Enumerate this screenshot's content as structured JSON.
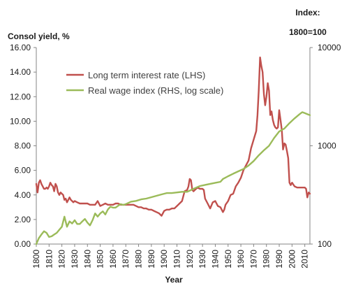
{
  "chart_data": {
    "type": "line",
    "ylabel_left": "Consol yield, %",
    "ylabel_right_line1": "Index:",
    "ylabel_right_line2": "1800=100",
    "xlabel": "Year",
    "xlim": [
      1800,
      2014
    ],
    "ylim_left": [
      0,
      16
    ],
    "ylim_right": [
      100,
      10000
    ],
    "right_axis_scale": "log",
    "grid": false,
    "legend_position": "upper-left inside plot",
    "x_ticks": [
      1800,
      1810,
      1820,
      1830,
      1840,
      1850,
      1860,
      1870,
      1880,
      1890,
      1900,
      1910,
      1920,
      1930,
      1940,
      1950,
      1960,
      1970,
      1980,
      1990,
      2000,
      2010
    ],
    "y_ticks_left": [
      "0.00",
      "2.00",
      "4.00",
      "6.00",
      "8.00",
      "10.00",
      "12.00",
      "14.00",
      "16.00"
    ],
    "y_ticks_right": [
      "100",
      "1000",
      "10000"
    ],
    "series": [
      {
        "name": "Long term interest rate (LHS)",
        "axis": "left",
        "color": "#c0504d",
        "x": [
          1800,
          1801,
          1802,
          1803,
          1804,
          1805,
          1806,
          1807,
          1808,
          1809,
          1810,
          1811,
          1812,
          1813,
          1814,
          1815,
          1816,
          1817,
          1818,
          1819,
          1820,
          1821,
          1822,
          1823,
          1824,
          1825,
          1826,
          1827,
          1828,
          1829,
          1830,
          1832,
          1834,
          1836,
          1838,
          1840,
          1842,
          1844,
          1846,
          1848,
          1850,
          1852,
          1854,
          1856,
          1858,
          1860,
          1862,
          1864,
          1866,
          1868,
          1870,
          1872,
          1874,
          1876,
          1878,
          1880,
          1882,
          1884,
          1886,
          1888,
          1890,
          1892,
          1894,
          1896,
          1898,
          1900,
          1902,
          1904,
          1906,
          1908,
          1910,
          1912,
          1914,
          1916,
          1918,
          1919,
          1920,
          1921,
          1922,
          1923,
          1924,
          1926,
          1928,
          1930,
          1931,
          1932,
          1934,
          1936,
          1938,
          1940,
          1942,
          1944,
          1946,
          1947,
          1948,
          1950,
          1952,
          1954,
          1956,
          1958,
          1960,
          1962,
          1964,
          1966,
          1968,
          1970,
          1972,
          1973,
          1974,
          1975,
          1976,
          1977,
          1978,
          1979,
          1980,
          1981,
          1982,
          1983,
          1984,
          1985,
          1986,
          1987,
          1988,
          1989,
          1990,
          1991,
          1992,
          1993,
          1994,
          1995,
          1996,
          1997,
          1998,
          1999,
          2000,
          2002,
          2004,
          2006,
          2008,
          2010,
          2011,
          2012,
          2013,
          2014
        ],
        "y": [
          4.9,
          4.2,
          5.0,
          5.2,
          4.9,
          4.7,
          4.5,
          4.5,
          4.6,
          4.5,
          4.7,
          5.0,
          4.8,
          4.7,
          4.3,
          4.9,
          4.7,
          4.2,
          4.0,
          4.2,
          4.1,
          4.0,
          3.6,
          3.7,
          3.4,
          3.6,
          3.8,
          3.6,
          3.5,
          3.4,
          3.5,
          3.4,
          3.3,
          3.3,
          3.3,
          3.3,
          3.2,
          3.2,
          3.2,
          3.5,
          3.1,
          3.2,
          3.3,
          3.2,
          3.2,
          3.2,
          3.3,
          3.3,
          3.2,
          3.2,
          3.2,
          3.2,
          3.2,
          3.2,
          3.1,
          3.0,
          3.0,
          2.9,
          2.9,
          2.8,
          2.8,
          2.7,
          2.6,
          2.5,
          2.3,
          2.7,
          2.8,
          2.8,
          2.9,
          2.9,
          3.1,
          3.3,
          3.5,
          4.3,
          4.4,
          4.7,
          5.3,
          5.2,
          4.4,
          4.3,
          4.4,
          4.6,
          4.5,
          4.5,
          4.4,
          3.7,
          3.3,
          2.9,
          3.4,
          3.5,
          3.1,
          3.0,
          2.6,
          2.8,
          3.2,
          3.5,
          4.0,
          4.1,
          4.7,
          5.0,
          5.4,
          6.0,
          6.4,
          6.8,
          7.8,
          8.5,
          9.2,
          10.5,
          12.5,
          15.2,
          14.5,
          14.0,
          12.2,
          11.3,
          12.0,
          13.1,
          12.5,
          10.5,
          10.8,
          10.1,
          9.7,
          9.5,
          9.4,
          9.5,
          10.9,
          10.1,
          9.3,
          7.7,
          8.2,
          8.1,
          7.6,
          7.0,
          5.0,
          4.8,
          5.0,
          4.7,
          4.6,
          4.6,
          4.6,
          4.6,
          4.5,
          3.8,
          4.2,
          4.1
        ]
      },
      {
        "name": "Real wage index (RHS, log scale)",
        "axis": "right",
        "color": "#9bbb59",
        "x": [
          1800,
          1802,
          1804,
          1806,
          1808,
          1810,
          1812,
          1814,
          1816,
          1818,
          1820,
          1822,
          1824,
          1826,
          1828,
          1830,
          1832,
          1834,
          1836,
          1838,
          1840,
          1842,
          1844,
          1846,
          1848,
          1850,
          1852,
          1854,
          1856,
          1858,
          1860,
          1862,
          1864,
          1866,
          1868,
          1870,
          1874,
          1878,
          1882,
          1886,
          1890,
          1894,
          1898,
          1902,
          1906,
          1910,
          1914,
          1918,
          1920,
          1924,
          1928,
          1932,
          1936,
          1940,
          1944,
          1946,
          1950,
          1954,
          1958,
          1962,
          1966,
          1970,
          1974,
          1978,
          1982,
          1986,
          1990,
          1994,
          1998,
          2002,
          2006,
          2008,
          2010,
          2012,
          2014
        ],
        "y": [
          100,
          115,
          125,
          135,
          130,
          118,
          120,
          125,
          130,
          140,
          150,
          190,
          150,
          170,
          162,
          175,
          160,
          160,
          170,
          180,
          165,
          155,
          175,
          205,
          190,
          205,
          215,
          200,
          225,
          240,
          235,
          235,
          245,
          255,
          250,
          255,
          270,
          275,
          285,
          290,
          300,
          310,
          320,
          330,
          330,
          335,
          340,
          340,
          350,
          370,
          390,
          400,
          410,
          420,
          430,
          460,
          490,
          520,
          550,
          580,
          630,
          700,
          800,
          900,
          1000,
          1200,
          1400,
          1500,
          1700,
          1900,
          2100,
          2200,
          2150,
          2100,
          2050
        ]
      }
    ]
  }
}
